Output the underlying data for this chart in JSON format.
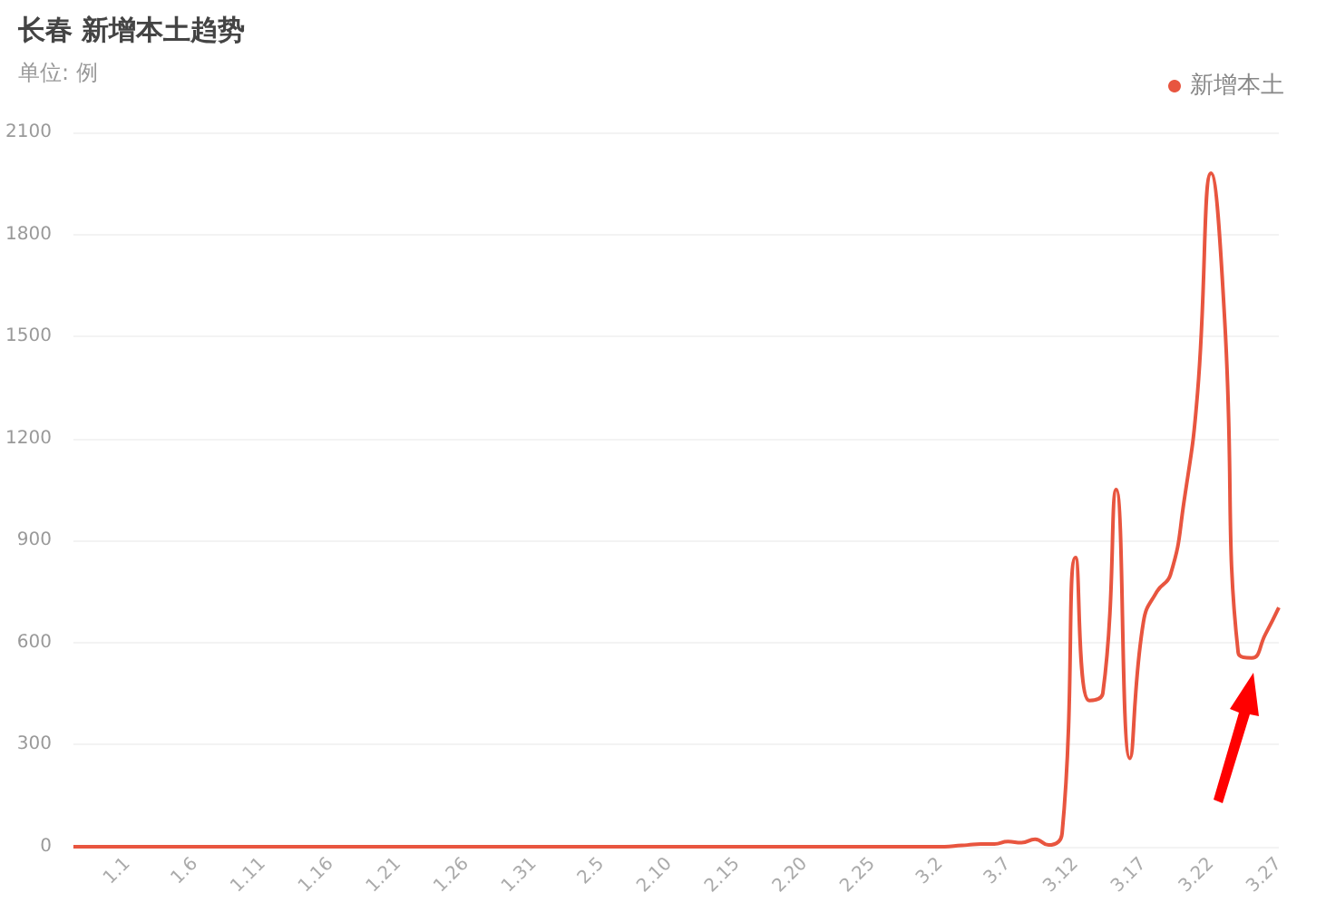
{
  "chart_data": {
    "type": "line",
    "title": "长春 新增本土趋势",
    "subtitle": "单位: 例",
    "categories": [
      null,
      null,
      null,
      null,
      "1.1",
      null,
      null,
      null,
      null,
      "1.6",
      null,
      null,
      null,
      null,
      "1.11",
      null,
      null,
      null,
      null,
      "1.16",
      null,
      null,
      null,
      null,
      "1.21",
      null,
      null,
      null,
      null,
      "1.26",
      null,
      null,
      null,
      null,
      "1.31",
      null,
      null,
      null,
      null,
      "2.5",
      null,
      null,
      null,
      null,
      "2.10",
      null,
      null,
      null,
      null,
      "2.15",
      null,
      null,
      null,
      null,
      "2.20",
      null,
      null,
      null,
      null,
      "2.25",
      null,
      null,
      null,
      null,
      "3.2",
      null,
      null,
      null,
      null,
      "3.7",
      null,
      null,
      null,
      null,
      "3.12",
      null,
      null,
      null,
      null,
      "3.17",
      null,
      null,
      null,
      null,
      "3.22",
      null,
      null,
      null,
      null,
      "3.27"
    ],
    "series": [
      {
        "name": "新增本土",
        "color": "#e8553f",
        "values": [
          0,
          0,
          0,
          0,
          0,
          0,
          0,
          0,
          0,
          0,
          0,
          0,
          0,
          0,
          0,
          0,
          0,
          0,
          0,
          0,
          0,
          0,
          0,
          0,
          0,
          0,
          0,
          0,
          0,
          0,
          0,
          0,
          0,
          0,
          0,
          0,
          0,
          0,
          0,
          0,
          0,
          0,
          0,
          0,
          0,
          0,
          0,
          0,
          0,
          0,
          0,
          0,
          0,
          0,
          0,
          0,
          0,
          0,
          0,
          0,
          0,
          0,
          0,
          0,
          0,
          2,
          5,
          8,
          8,
          15,
          12,
          22,
          5,
          40,
          850,
          430,
          450,
          1050,
          260,
          660,
          750,
          800,
          1015,
          1335,
          1980,
          1550,
          570,
          555,
          624,
          703
        ]
      }
    ],
    "ylim": [
      0,
      2100
    ],
    "yticks": [
      0,
      300,
      600,
      900,
      1200,
      1500,
      1800,
      2100
    ],
    "grid": "y",
    "legend": "top right",
    "marker": "none",
    "line_style": "solid"
  }
}
